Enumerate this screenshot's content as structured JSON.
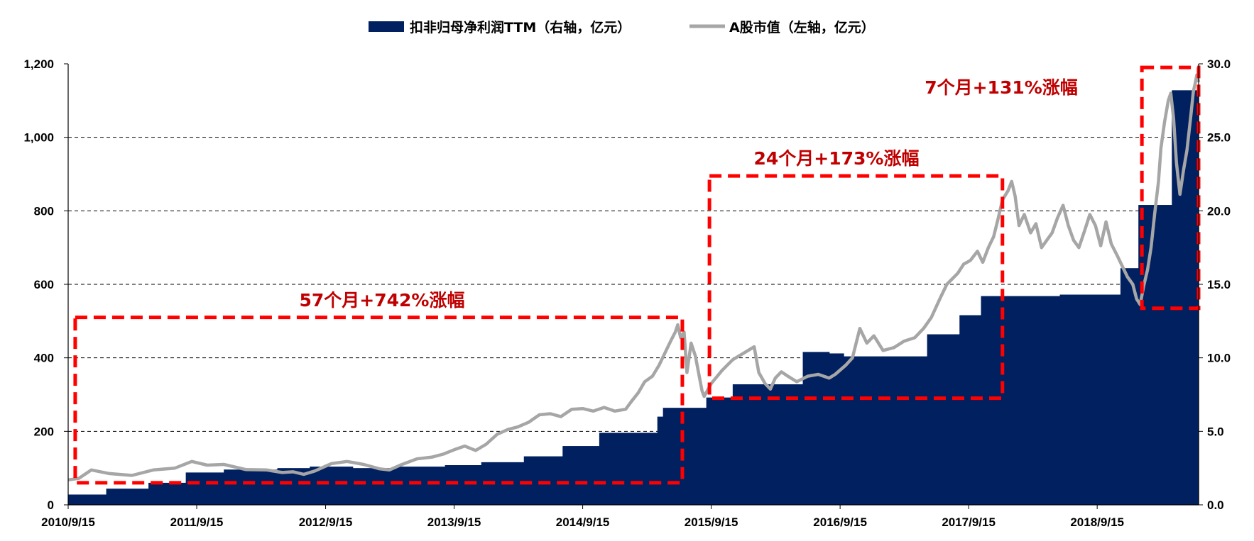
{
  "chart_data": {
    "type": "bar+line",
    "legend": {
      "placement": "top-center",
      "entries": [
        {
          "name": "扣非归母净利润TTM（右轴，亿元）",
          "kind": "area",
          "color": "#002060"
        },
        {
          "name": "A股市值（左轴，亿元）",
          "kind": "line",
          "color": "#a6a6a6"
        }
      ]
    },
    "x_tick_labels": [
      "2010/9/15",
      "2011/9/15",
      "2012/9/15",
      "2013/9/15",
      "2014/9/15",
      "2015/9/15",
      "2016/9/15",
      "2017/9/15",
      "2018/9/15"
    ],
    "x_range": [
      "2010-09-15",
      "2019-06-30"
    ],
    "y_left": {
      "label": "",
      "range": [
        0,
        1200
      ],
      "ticks": [
        "0",
        "200",
        "400",
        "600",
        "800",
        "1,000",
        "1,200"
      ]
    },
    "y_right": {
      "label": "",
      "range": [
        0,
        30
      ],
      "ticks": [
        "0.0",
        "5.0",
        "10.0",
        "15.0",
        "20.0",
        "25.0",
        "30.0"
      ]
    },
    "grid": {
      "horizontal": true,
      "style": "dashed"
    },
    "series": [
      {
        "name": "扣非归母净利润TTM（右轴，亿元）",
        "type": "step-area",
        "axis": "right",
        "color": "#002060",
        "points": [
          [
            "2010-09-15",
            0.7
          ],
          [
            "2011-01-01",
            1.1
          ],
          [
            "2011-05-01",
            1.5
          ],
          [
            "2011-08-15",
            2.2
          ],
          [
            "2011-12-01",
            2.4
          ],
          [
            "2012-05-01",
            2.5
          ],
          [
            "2012-08-01",
            2.6
          ],
          [
            "2012-12-01",
            2.5
          ],
          [
            "2013-04-01",
            2.6
          ],
          [
            "2013-08-20",
            2.7
          ],
          [
            "2013-12-01",
            2.9
          ],
          [
            "2014-04-01",
            3.3
          ],
          [
            "2014-07-20",
            4.0
          ],
          [
            "2014-11-01",
            4.9
          ],
          [
            "2015-04-15",
            6.0
          ],
          [
            "2015-05-01",
            6.6
          ],
          [
            "2015-09-01",
            7.3
          ],
          [
            "2015-11-15",
            8.2
          ],
          [
            "2016-04-01",
            8.2
          ],
          [
            "2016-06-01",
            10.4
          ],
          [
            "2016-08-15",
            10.3
          ],
          [
            "2016-09-25",
            10.1
          ],
          [
            "2017-05-20",
            11.6
          ],
          [
            "2017-08-20",
            12.9
          ],
          [
            "2017-10-20",
            14.2
          ],
          [
            "2018-05-01",
            14.2
          ],
          [
            "2018-06-01",
            14.3
          ],
          [
            "2018-11-20",
            16.1
          ],
          [
            "2019-01-10",
            20.4
          ],
          [
            "2019-04-15",
            28.2
          ],
          [
            "2019-06-30",
            28.2
          ]
        ]
      },
      {
        "name": "A股市值（左轴，亿元）",
        "type": "line",
        "axis": "left",
        "color": "#a6a6a6",
        "points": [
          [
            "2010-09-15",
            68
          ],
          [
            "2010-10-15",
            72
          ],
          [
            "2010-11-20",
            95
          ],
          [
            "2011-01-10",
            85
          ],
          [
            "2011-03-15",
            80
          ],
          [
            "2011-05-15",
            95
          ],
          [
            "2011-07-15",
            100
          ],
          [
            "2011-09-01",
            118
          ],
          [
            "2011-10-15",
            108
          ],
          [
            "2011-12-01",
            110
          ],
          [
            "2012-02-01",
            96
          ],
          [
            "2012-04-01",
            95
          ],
          [
            "2012-05-15",
            88
          ],
          [
            "2012-06-15",
            90
          ],
          [
            "2012-07-15",
            83
          ],
          [
            "2012-08-15",
            92
          ],
          [
            "2012-10-01",
            112
          ],
          [
            "2012-11-15",
            118
          ],
          [
            "2013-01-01",
            110
          ],
          [
            "2013-02-15",
            98
          ],
          [
            "2013-03-15",
            95
          ],
          [
            "2013-04-15",
            108
          ],
          [
            "2013-06-01",
            125
          ],
          [
            "2013-07-15",
            130
          ],
          [
            "2013-08-15",
            138
          ],
          [
            "2013-09-15",
            150
          ],
          [
            "2013-10-15",
            160
          ],
          [
            "2013-11-15",
            148
          ],
          [
            "2013-12-15",
            165
          ],
          [
            "2014-01-15",
            192
          ],
          [
            "2014-02-15",
            205
          ],
          [
            "2014-03-15",
            212
          ],
          [
            "2014-04-15",
            225
          ],
          [
            "2014-05-15",
            245
          ],
          [
            "2014-06-15",
            248
          ],
          [
            "2014-07-15",
            240
          ],
          [
            "2014-08-15",
            260
          ],
          [
            "2014-09-15",
            262
          ],
          [
            "2014-10-15",
            255
          ],
          [
            "2014-11-15",
            265
          ],
          [
            "2014-12-15",
            255
          ],
          [
            "2015-01-15",
            260
          ],
          [
            "2015-02-01",
            282
          ],
          [
            "2015-02-20",
            305
          ],
          [
            "2015-03-10",
            335
          ],
          [
            "2015-04-01",
            350
          ],
          [
            "2015-04-20",
            380
          ],
          [
            "2015-05-10",
            420
          ],
          [
            "2015-05-25",
            450
          ],
          [
            "2015-06-05",
            470
          ],
          [
            "2015-06-12",
            490
          ],
          [
            "2015-06-20",
            455
          ],
          [
            "2015-06-30",
            470
          ],
          [
            "2015-07-08",
            360
          ],
          [
            "2015-07-20",
            440
          ],
          [
            "2015-08-01",
            405
          ],
          [
            "2015-08-20",
            310
          ],
          [
            "2015-08-26",
            295
          ],
          [
            "2015-09-15",
            330
          ],
          [
            "2015-10-15",
            365
          ],
          [
            "2015-11-15",
            395
          ],
          [
            "2015-12-15",
            412
          ],
          [
            "2016-01-15",
            430
          ],
          [
            "2016-01-28",
            360
          ],
          [
            "2016-02-15",
            330
          ],
          [
            "2016-03-01",
            315
          ],
          [
            "2016-03-15",
            345
          ],
          [
            "2016-04-01",
            362
          ],
          [
            "2016-04-20",
            350
          ],
          [
            "2016-05-15",
            335
          ],
          [
            "2016-06-15",
            350
          ],
          [
            "2016-07-15",
            355
          ],
          [
            "2016-08-15",
            345
          ],
          [
            "2016-09-01",
            355
          ],
          [
            "2016-10-01",
            380
          ],
          [
            "2016-10-20",
            400
          ],
          [
            "2016-11-10",
            480
          ],
          [
            "2016-11-30",
            440
          ],
          [
            "2016-12-20",
            460
          ],
          [
            "2017-01-15",
            420
          ],
          [
            "2017-02-15",
            428
          ],
          [
            "2017-03-15",
            445
          ],
          [
            "2017-04-15",
            455
          ],
          [
            "2017-05-10",
            480
          ],
          [
            "2017-06-01",
            510
          ],
          [
            "2017-06-25",
            560
          ],
          [
            "2017-07-15",
            600
          ],
          [
            "2017-08-15",
            630
          ],
          [
            "2017-09-01",
            655
          ],
          [
            "2017-09-20",
            665
          ],
          [
            "2017-10-10",
            690
          ],
          [
            "2017-10-25",
            660
          ],
          [
            "2017-11-10",
            700
          ],
          [
            "2017-11-25",
            730
          ],
          [
            "2017-12-08",
            780
          ],
          [
            "2017-12-20",
            830
          ],
          [
            "2018-01-05",
            855
          ],
          [
            "2018-01-15",
            880
          ],
          [
            "2018-01-25",
            840
          ],
          [
            "2018-02-05",
            760
          ],
          [
            "2018-02-20",
            790
          ],
          [
            "2018-03-10",
            740
          ],
          [
            "2018-03-25",
            765
          ],
          [
            "2018-04-10",
            700
          ],
          [
            "2018-04-25",
            720
          ],
          [
            "2018-05-10",
            740
          ],
          [
            "2018-05-25",
            780
          ],
          [
            "2018-06-10",
            815
          ],
          [
            "2018-06-25",
            760
          ],
          [
            "2018-07-10",
            720
          ],
          [
            "2018-07-25",
            700
          ],
          [
            "2018-08-10",
            745
          ],
          [
            "2018-08-25",
            790
          ],
          [
            "2018-09-10",
            760
          ],
          [
            "2018-09-25",
            705
          ],
          [
            "2018-10-10",
            770
          ],
          [
            "2018-10-25",
            710
          ],
          [
            "2018-11-10",
            680
          ],
          [
            "2018-11-25",
            650
          ],
          [
            "2018-12-10",
            620
          ],
          [
            "2018-12-25",
            600
          ],
          [
            "2019-01-05",
            560
          ],
          [
            "2019-01-15",
            545
          ],
          [
            "2019-01-25",
            595
          ],
          [
            "2019-02-05",
            640
          ],
          [
            "2019-02-15",
            700
          ],
          [
            "2019-02-25",
            790
          ],
          [
            "2019-03-08",
            880
          ],
          [
            "2019-03-15",
            970
          ],
          [
            "2019-03-25",
            1040
          ],
          [
            "2019-04-05",
            1100
          ],
          [
            "2019-04-12",
            1120
          ],
          [
            "2019-04-20",
            1050
          ],
          [
            "2019-04-28",
            930
          ],
          [
            "2019-05-08",
            845
          ],
          [
            "2019-05-18",
            910
          ],
          [
            "2019-05-28",
            965
          ],
          [
            "2019-06-08",
            1060
          ],
          [
            "2019-06-15",
            1125
          ],
          [
            "2019-06-20",
            1145
          ],
          [
            "2019-06-25",
            1170
          ],
          [
            "2019-06-30",
            1150
          ]
        ]
      }
    ],
    "annotations": [
      {
        "text": "57个月+742%涨幅",
        "color": "#c00000"
      },
      {
        "text": "24个月+173%涨幅",
        "color": "#c00000"
      },
      {
        "text": "7个月+131%涨幅",
        "color": "#c00000"
      }
    ],
    "highlight_boxes": [
      {
        "from": "2010-10-05",
        "to": "2015-06-25",
        "y_low": 60,
        "y_high": 510,
        "axis": "left",
        "color": "#ff0000"
      },
      {
        "from": "2015-09-10",
        "to": "2017-12-20",
        "y_low": 290,
        "y_high": 895,
        "axis": "left",
        "color": "#ff0000"
      },
      {
        "from": "2019-01-20",
        "to": "2019-06-30",
        "y_low": 535,
        "y_high": 1190,
        "axis": "left",
        "color": "#ff0000"
      }
    ]
  }
}
